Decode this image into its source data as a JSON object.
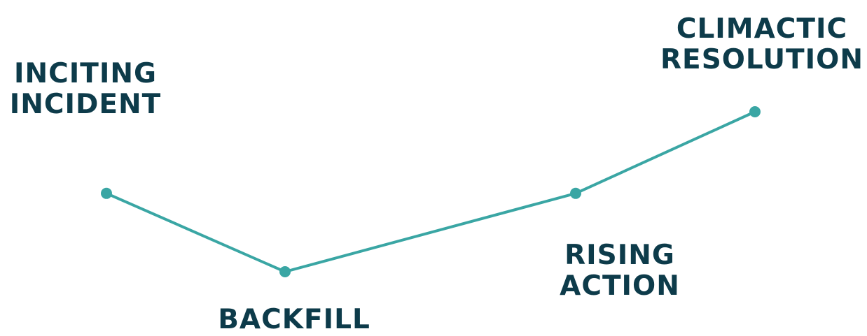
{
  "colors": {
    "line": "#3aa6a4",
    "text": "#0d3b4a",
    "background": "#ffffff"
  },
  "stages": [
    {
      "id": "inciting",
      "lines": [
        "INCITING",
        "INCIDENT"
      ],
      "level": 0.49
    },
    {
      "id": "backfill",
      "lines": [
        "BACKFILL"
      ],
      "level": 0.0
    },
    {
      "id": "rising",
      "lines": [
        "RISING",
        "ACTION"
      ],
      "level": 0.49
    },
    {
      "id": "climactic",
      "lines": [
        "CLIMACTIC",
        "RESOLUTION"
      ],
      "level": 1.0
    }
  ]
}
